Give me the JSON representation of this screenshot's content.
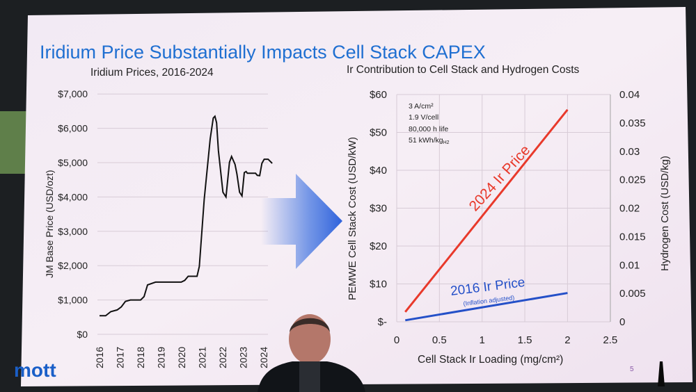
{
  "slide": {
    "title": "Iridium Price Substantially Impacts Cell Stack CAPEX",
    "logo": "mott",
    "page_number": "5",
    "colors": {
      "title": "#1f6fd1",
      "background": "#f3e8f2",
      "logo": "#1a5fc8",
      "arrow": "#3a6fe0"
    }
  },
  "chart_data": [
    {
      "type": "line",
      "title": "Iridium Prices, 2016-2024",
      "xlabel": "",
      "ylabel": "JM Base Price (USD/ozt)",
      "xlim": [
        2016,
        2024.6
      ],
      "ylim": [
        0,
        7000
      ],
      "x_ticks": [
        "2016",
        "2017",
        "2018",
        "2019",
        "2020",
        "2021",
        "2022",
        "2023",
        "2024"
      ],
      "y_ticks": [
        "$0",
        "$1,000",
        "$2,000",
        "$3,000",
        "$4,000",
        "$5,000",
        "$6,000",
        "$7,000"
      ],
      "grid": true,
      "series": [
        {
          "color": "#111111",
          "points": [
            [
              2016.0,
              540
            ],
            [
              2016.3,
              540
            ],
            [
              2016.55,
              660
            ],
            [
              2016.86,
              710
            ],
            [
              2017.06,
              800
            ],
            [
              2017.26,
              960
            ],
            [
              2017.5,
              1000
            ],
            [
              2018.0,
              1000
            ],
            [
              2018.17,
              1100
            ],
            [
              2018.34,
              1440
            ],
            [
              2018.73,
              1520
            ],
            [
              2019.98,
              1520
            ],
            [
              2020.15,
              1570
            ],
            [
              2020.32,
              1690
            ],
            [
              2020.75,
              1690
            ],
            [
              2020.86,
              1980
            ],
            [
              2021.1,
              3930
            ],
            [
              2021.39,
              5690
            ],
            [
              2021.54,
              6300
            ],
            [
              2021.62,
              6350
            ],
            [
              2021.7,
              6160
            ],
            [
              2021.79,
              5350
            ],
            [
              2022.01,
              4140
            ],
            [
              2022.16,
              4000
            ],
            [
              2022.33,
              5010
            ],
            [
              2022.43,
              5180
            ],
            [
              2022.6,
              4950
            ],
            [
              2022.69,
              4670
            ],
            [
              2022.82,
              4140
            ],
            [
              2022.94,
              4030
            ],
            [
              2023.05,
              4710
            ],
            [
              2023.14,
              4740
            ],
            [
              2023.2,
              4690
            ],
            [
              2023.6,
              4690
            ],
            [
              2023.68,
              4630
            ],
            [
              2023.8,
              4620
            ],
            [
              2023.91,
              4980
            ],
            [
              2024.02,
              5100
            ],
            [
              2024.21,
              5100
            ],
            [
              2024.41,
              4980
            ]
          ]
        }
      ]
    },
    {
      "type": "line",
      "title": "Ir Contribution to Cell Stack and Hydrogen Costs",
      "xlabel": "Cell Stack Ir Loading (mg/cm²)",
      "ylabel": "PEMWE Cell Stack Cost (USD/kW)",
      "ylabel_right": "Hydrogen Cost (USD/kg)",
      "xlim": [
        0,
        2.5
      ],
      "ylim": [
        0,
        60
      ],
      "ylim_right": [
        0,
        0.04
      ],
      "x_ticks": [
        "0",
        "0.5",
        "1",
        "1.5",
        "2",
        "2.5"
      ],
      "y_ticks": [
        "$-",
        "$10",
        "$20",
        "$30",
        "$40",
        "$50",
        "$60"
      ],
      "y_ticks_right": [
        "0",
        "0.005",
        "0.01",
        "0.015",
        "0.02",
        "0.025",
        "0.03",
        "0.035",
        "0.04"
      ],
      "grid": true,
      "annotations": [
        "3 A/cm²",
        "1.9 V/cell",
        "80,000 h life",
        "51 kWh/kg"
      ],
      "annotation_subscript": "H2",
      "series": [
        {
          "name": "2024 Ir Price",
          "color": "#e8392b",
          "points": [
            [
              0.1,
              2.6
            ],
            [
              2.0,
              56
            ]
          ]
        },
        {
          "name": "2016 Ir Price",
          "sublabel": "(Inflation adjusted)",
          "color": "#2450c8",
          "points": [
            [
              0.1,
              0.4
            ],
            [
              2.0,
              7.6
            ]
          ]
        }
      ]
    }
  ]
}
